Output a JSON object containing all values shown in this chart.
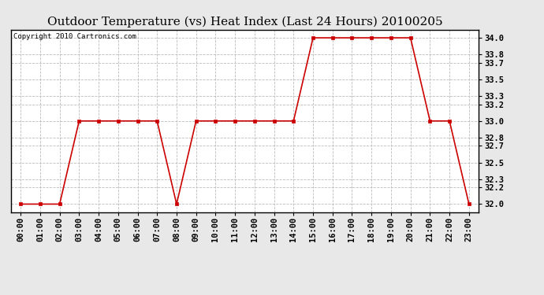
{
  "title": "Outdoor Temperature (vs) Heat Index (Last 24 Hours) 20100205",
  "copyright_text": "Copyright 2010 Cartronics.com",
  "x_labels": [
    "00:00",
    "01:00",
    "02:00",
    "03:00",
    "04:00",
    "05:00",
    "06:00",
    "07:00",
    "08:00",
    "09:00",
    "10:00",
    "11:00",
    "12:00",
    "13:00",
    "14:00",
    "15:00",
    "16:00",
    "17:00",
    "18:00",
    "19:00",
    "20:00",
    "21:00",
    "22:00",
    "23:00"
  ],
  "y_values": [
    32.0,
    32.0,
    32.0,
    33.0,
    33.0,
    33.0,
    33.0,
    33.0,
    32.0,
    33.0,
    33.0,
    33.0,
    33.0,
    33.0,
    33.0,
    34.0,
    34.0,
    34.0,
    34.0,
    34.0,
    34.0,
    33.0,
    33.0,
    32.0
  ],
  "line_color": "#cc0000",
  "marker": "s",
  "marker_size": 3,
  "ylim_min": 31.9,
  "ylim_max": 34.1,
  "yticks": [
    32.0,
    32.2,
    32.3,
    32.5,
    32.7,
    32.8,
    33.0,
    33.2,
    33.3,
    33.5,
    33.7,
    33.8,
    34.0
  ],
  "background_color": "#e8e8e8",
  "plot_bg_color": "#ffffff",
  "grid_color": "#bbbbbb",
  "title_fontsize": 11,
  "tick_fontsize": 7.5,
  "copyright_fontsize": 6.5,
  "fig_width": 6.9,
  "fig_height": 3.75,
  "dpi": 100
}
